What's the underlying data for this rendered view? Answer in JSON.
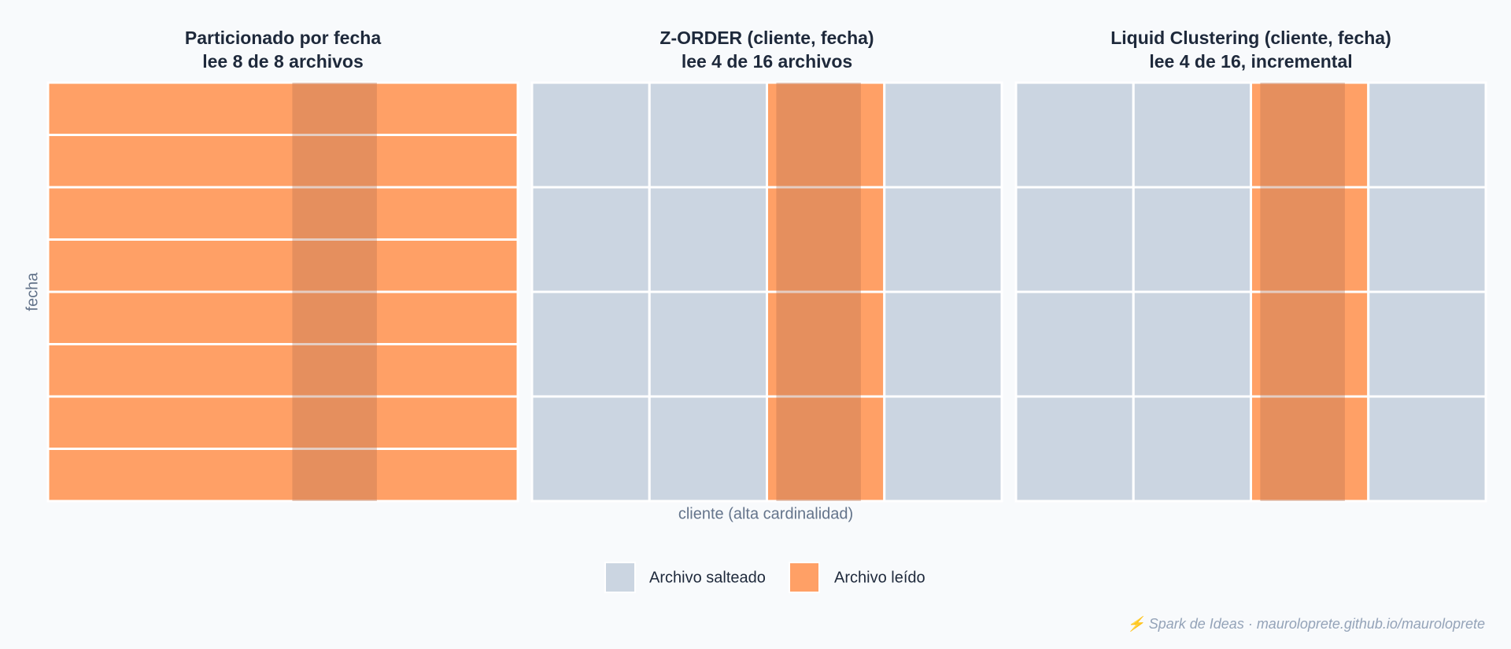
{
  "panels": [
    {
      "title": [
        "Particionado por fecha",
        "lee 8 de 8 archivos"
      ]
    },
    {
      "title": [
        "Z-ORDER (cliente, fecha)",
        "lee 4 de 16 archivos"
      ]
    },
    {
      "title": [
        "Liquid Clustering (cliente, fecha)",
        "lee 4 de 16, incremental"
      ]
    }
  ],
  "y_label": "fecha",
  "x_label": "cliente (alta cardinalidad)",
  "legend": [
    "Archivo salteado",
    "Archivo leído"
  ],
  "footer": "⚡ Spark de Ideas · mauroloprete.github.io/mauroloprete"
}
